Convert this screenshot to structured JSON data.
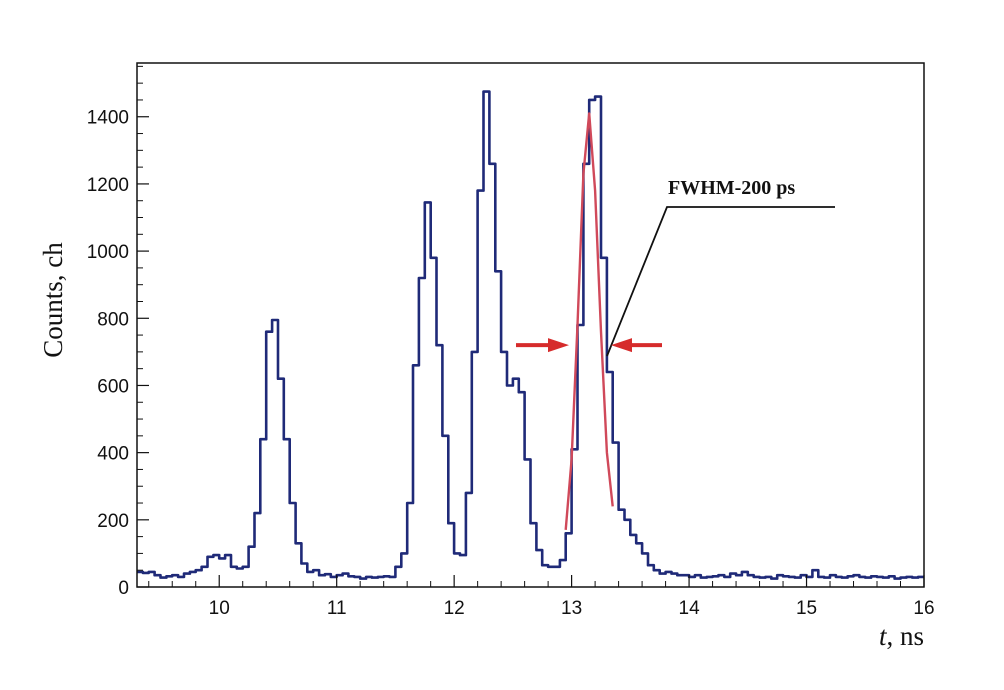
{
  "chart_data": {
    "type": "line",
    "title": "",
    "xlabel_italic": "t",
    "xlabel_rest": ", ns",
    "ylabel": "Counts, ch",
    "xlim": [
      9.3,
      16.0
    ],
    "ylim": [
      0,
      1560
    ],
    "x_ticks": [
      10,
      11,
      12,
      13,
      14,
      15,
      16
    ],
    "y_ticks": [
      0,
      200,
      400,
      600,
      800,
      1000,
      1200,
      1400
    ],
    "grid": false,
    "series": [
      {
        "color": "#1f2a78",
        "step": true,
        "points": [
          [
            9.3,
            45
          ],
          [
            9.35,
            42
          ],
          [
            9.4,
            45
          ],
          [
            9.45,
            35
          ],
          [
            9.5,
            28
          ],
          [
            9.55,
            32
          ],
          [
            9.6,
            35
          ],
          [
            9.65,
            30
          ],
          [
            9.7,
            40
          ],
          [
            9.75,
            45
          ],
          [
            9.8,
            50
          ],
          [
            9.85,
            60
          ],
          [
            9.9,
            90
          ],
          [
            9.95,
            95
          ],
          [
            10.0,
            85
          ],
          [
            10.05,
            95
          ],
          [
            10.1,
            60
          ],
          [
            10.15,
            55
          ],
          [
            10.2,
            60
          ],
          [
            10.25,
            120
          ],
          [
            10.3,
            220
          ],
          [
            10.35,
            440
          ],
          [
            10.4,
            760
          ],
          [
            10.45,
            795
          ],
          [
            10.5,
            620
          ],
          [
            10.55,
            440
          ],
          [
            10.6,
            250
          ],
          [
            10.65,
            130
          ],
          [
            10.7,
            70
          ],
          [
            10.75,
            45
          ],
          [
            10.8,
            50
          ],
          [
            10.85,
            35
          ],
          [
            10.9,
            38
          ],
          [
            10.95,
            30
          ],
          [
            11.0,
            35
          ],
          [
            11.05,
            40
          ],
          [
            11.1,
            32
          ],
          [
            11.15,
            30
          ],
          [
            11.2,
            25
          ],
          [
            11.25,
            30
          ],
          [
            11.3,
            28
          ],
          [
            11.35,
            30
          ],
          [
            11.4,
            32
          ],
          [
            11.45,
            30
          ],
          [
            11.5,
            60
          ],
          [
            11.55,
            100
          ],
          [
            11.6,
            250
          ],
          [
            11.65,
            660
          ],
          [
            11.7,
            920
          ],
          [
            11.75,
            1145
          ],
          [
            11.8,
            980
          ],
          [
            11.85,
            720
          ],
          [
            11.9,
            450
          ],
          [
            11.95,
            190
          ],
          [
            12.0,
            100
          ],
          [
            12.05,
            95
          ],
          [
            12.1,
            280
          ],
          [
            12.15,
            700
          ],
          [
            12.2,
            1180
          ],
          [
            12.25,
            1475
          ],
          [
            12.3,
            1260
          ],
          [
            12.35,
            940
          ],
          [
            12.4,
            700
          ],
          [
            12.45,
            600
          ],
          [
            12.5,
            620
          ],
          [
            12.55,
            580
          ],
          [
            12.6,
            380
          ],
          [
            12.65,
            190
          ],
          [
            12.7,
            110
          ],
          [
            12.75,
            65
          ],
          [
            12.8,
            60
          ],
          [
            12.85,
            60
          ],
          [
            12.9,
            80
          ],
          [
            12.95,
            160
          ],
          [
            13.0,
            410
          ],
          [
            13.05,
            780
          ],
          [
            13.1,
            1260
          ],
          [
            13.15,
            1450
          ],
          [
            13.2,
            1460
          ],
          [
            13.25,
            980
          ],
          [
            13.3,
            640
          ],
          [
            13.35,
            430
          ],
          [
            13.4,
            230
          ],
          [
            13.45,
            200
          ],
          [
            13.5,
            155
          ],
          [
            13.55,
            130
          ],
          [
            13.6,
            100
          ],
          [
            13.65,
            65
          ],
          [
            13.7,
            50
          ],
          [
            13.75,
            40
          ],
          [
            13.8,
            45
          ],
          [
            13.85,
            40
          ],
          [
            13.9,
            35
          ],
          [
            13.95,
            35
          ],
          [
            14.0,
            30
          ],
          [
            14.05,
            35
          ],
          [
            14.1,
            28
          ],
          [
            14.15,
            30
          ],
          [
            14.2,
            32
          ],
          [
            14.25,
            35
          ],
          [
            14.3,
            30
          ],
          [
            14.35,
            40
          ],
          [
            14.4,
            35
          ],
          [
            14.45,
            45
          ],
          [
            14.5,
            35
          ],
          [
            14.55,
            30
          ],
          [
            14.6,
            28
          ],
          [
            14.65,
            30
          ],
          [
            14.7,
            25
          ],
          [
            14.75,
            35
          ],
          [
            14.8,
            32
          ],
          [
            14.85,
            30
          ],
          [
            14.9,
            28
          ],
          [
            14.95,
            35
          ],
          [
            15.0,
            30
          ],
          [
            15.05,
            50
          ],
          [
            15.1,
            30
          ],
          [
            15.15,
            28
          ],
          [
            15.2,
            35
          ],
          [
            15.25,
            30
          ],
          [
            15.3,
            28
          ],
          [
            15.35,
            32
          ],
          [
            15.4,
            35
          ],
          [
            15.45,
            30
          ],
          [
            15.5,
            28
          ],
          [
            15.55,
            32
          ],
          [
            15.6,
            30
          ],
          [
            15.65,
            28
          ],
          [
            15.7,
            32
          ],
          [
            15.75,
            25
          ],
          [
            15.8,
            28
          ],
          [
            15.85,
            30
          ],
          [
            15.9,
            28
          ],
          [
            15.95,
            30
          ]
        ]
      },
      {
        "color": "#d0495a",
        "step": false,
        "points": [
          [
            12.95,
            170
          ],
          [
            13.0,
            380
          ],
          [
            13.05,
            780
          ],
          [
            13.1,
            1230
          ],
          [
            13.15,
            1410
          ],
          [
            13.2,
            1180
          ],
          [
            13.25,
            760
          ],
          [
            13.3,
            400
          ],
          [
            13.35,
            240
          ]
        ]
      }
    ],
    "annotations": [
      {
        "text": "FWHM-200 ps"
      }
    ],
    "arrow_color": "#d62b2b"
  }
}
